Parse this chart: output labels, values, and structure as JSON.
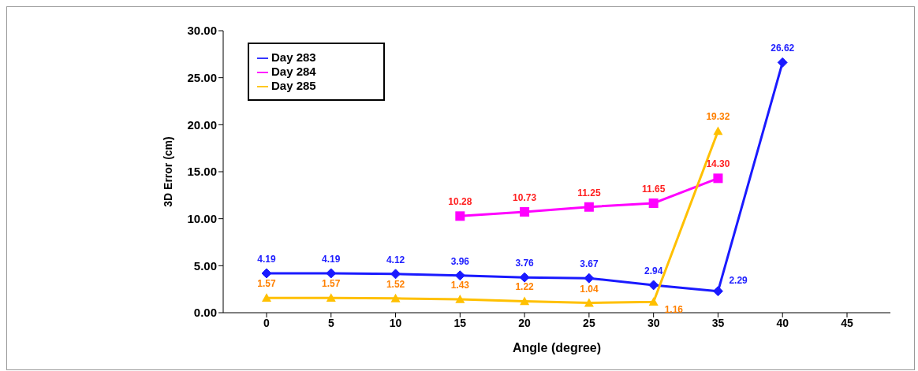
{
  "chart_data": {
    "type": "line",
    "xlabel": "Angle (degree)",
    "ylabel": "3D Error (cm)",
    "categories": [
      "0",
      "5",
      "10",
      "15",
      "20",
      "25",
      "30",
      "35",
      "40",
      "45"
    ],
    "ylim": [
      0,
      30
    ],
    "yticks": [
      {
        "value": 0,
        "label": "0.00"
      },
      {
        "value": 5,
        "label": "5.00"
      },
      {
        "value": 10,
        "label": "10.00"
      },
      {
        "value": 15,
        "label": "15.00"
      },
      {
        "value": 20,
        "label": "20.00"
      },
      {
        "value": 25,
        "label": "25.00"
      },
      {
        "value": 30,
        "label": "30.00"
      }
    ],
    "grid": false,
    "legend": "top left",
    "line_style": "solid",
    "series": [
      {
        "name": "Day 283",
        "color": "#1a1aff",
        "marker": "diamond",
        "values": [
          4.19,
          4.19,
          4.12,
          3.96,
          3.76,
          3.67,
          2.94,
          2.29,
          26.62,
          null
        ],
        "value_labels": [
          "4.19",
          "4.19",
          "4.12",
          "3.96",
          "3.76",
          "3.67",
          "2.94",
          "2.29",
          "26.62",
          null
        ]
      },
      {
        "name": "Day 284",
        "color": "#ff00ff",
        "marker": "square",
        "values": [
          null,
          null,
          null,
          10.28,
          10.73,
          11.25,
          11.65,
          14.3,
          null,
          null
        ],
        "value_labels": [
          null,
          null,
          null,
          "10.28",
          "10.73",
          "11.25",
          "11.65",
          "14.30",
          null,
          null
        ]
      },
      {
        "name": "Day 285",
        "color": "#ffc000",
        "marker": "triangle",
        "values": [
          1.57,
          1.57,
          1.52,
          1.43,
          1.22,
          1.04,
          1.16,
          19.32,
          null,
          null
        ],
        "value_labels": [
          "1.57",
          "1.57",
          "1.52",
          "1.43",
          "1.22",
          "1.04",
          "1.16",
          "19.32",
          null,
          null
        ]
      }
    ]
  }
}
